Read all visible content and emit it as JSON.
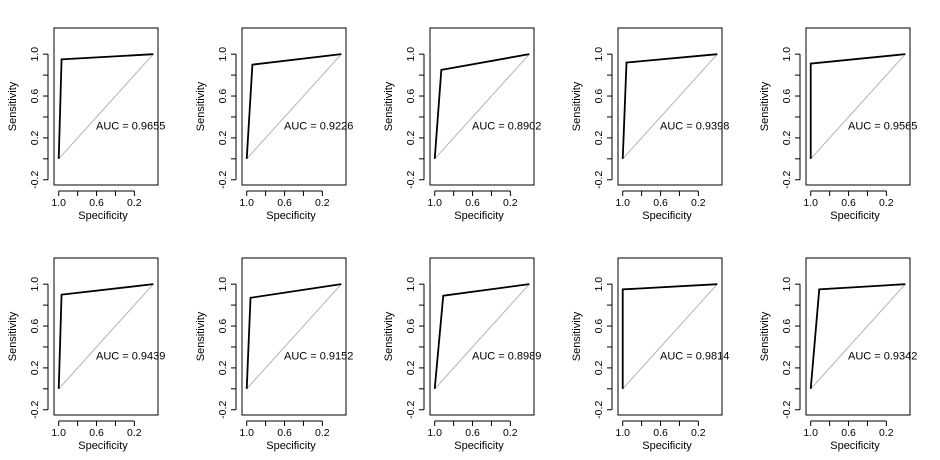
{
  "chart_data": [
    {
      "type": "line",
      "title": "",
      "xlabel": "Specificity",
      "ylabel": "Sensitivity",
      "xlim": [
        1.05,
        -0.05
      ],
      "ylim": [
        -0.25,
        1.25
      ],
      "xticks": [
        "1.0",
        "0.6",
        "0.2"
      ],
      "yticks": [
        "-0.2",
        "0.2",
        "0.6",
        "1.0"
      ],
      "auc_label": "AUC = 0.9655",
      "series": [
        {
          "name": "ROC",
          "x": [
            1.0,
            0.97,
            0.0
          ],
          "y": [
            0.0,
            0.95,
            1.0
          ]
        },
        {
          "name": "reference",
          "x": [
            1.0,
            0.0
          ],
          "y": [
            0.0,
            1.0
          ]
        }
      ]
    },
    {
      "type": "line",
      "title": "",
      "xlabel": "Specificity",
      "ylabel": "Sensitivity",
      "xlim": [
        1.05,
        -0.05
      ],
      "ylim": [
        -0.25,
        1.25
      ],
      "xticks": [
        "1.0",
        "0.6",
        "0.2"
      ],
      "yticks": [
        "-0.2",
        "0.2",
        "0.6",
        "1.0"
      ],
      "auc_label": "AUC = 0.9226",
      "series": [
        {
          "name": "ROC",
          "x": [
            1.0,
            0.94,
            0.0
          ],
          "y": [
            0.0,
            0.9,
            1.0
          ]
        },
        {
          "name": "reference",
          "x": [
            1.0,
            0.0
          ],
          "y": [
            0.0,
            1.0
          ]
        }
      ]
    },
    {
      "type": "line",
      "title": "",
      "xlabel": "Specificity",
      "ylabel": "Sensitivity",
      "xlim": [
        1.05,
        -0.05
      ],
      "ylim": [
        -0.25,
        1.25
      ],
      "xticks": [
        "1.0",
        "0.6",
        "0.2"
      ],
      "yticks": [
        "-0.2",
        "0.2",
        "0.6",
        "1.0"
      ],
      "auc_label": "AUC = 0.8902",
      "series": [
        {
          "name": "ROC",
          "x": [
            1.0,
            0.93,
            0.0
          ],
          "y": [
            0.0,
            0.85,
            1.0
          ]
        },
        {
          "name": "reference",
          "x": [
            1.0,
            0.0
          ],
          "y": [
            0.0,
            1.0
          ]
        }
      ]
    },
    {
      "type": "line",
      "title": "",
      "xlabel": "Specificity",
      "ylabel": "Sensitivity",
      "xlim": [
        1.05,
        -0.05
      ],
      "ylim": [
        -0.25,
        1.25
      ],
      "xticks": [
        "1.0",
        "0.6",
        "0.2"
      ],
      "yticks": [
        "-0.2",
        "0.2",
        "0.6",
        "1.0"
      ],
      "auc_label": "AUC = 0.9398",
      "series": [
        {
          "name": "ROC",
          "x": [
            1.0,
            0.96,
            0.0
          ],
          "y": [
            0.0,
            0.92,
            1.0
          ]
        },
        {
          "name": "reference",
          "x": [
            1.0,
            0.0
          ],
          "y": [
            0.0,
            1.0
          ]
        }
      ]
    },
    {
      "type": "line",
      "title": "",
      "xlabel": "Specificity",
      "ylabel": "Sensitivity",
      "xlim": [
        1.05,
        -0.05
      ],
      "ylim": [
        -0.25,
        1.25
      ],
      "xticks": [
        "1.0",
        "0.6",
        "0.2"
      ],
      "yticks": [
        "-0.2",
        "0.2",
        "0.6",
        "1.0"
      ],
      "auc_label": "AUC = 0.9565",
      "series": [
        {
          "name": "ROC",
          "x": [
            1.0,
            1.0,
            0.0
          ],
          "y": [
            0.0,
            0.91,
            1.0
          ]
        },
        {
          "name": "reference",
          "x": [
            1.0,
            0.0
          ],
          "y": [
            0.0,
            1.0
          ]
        }
      ]
    },
    {
      "type": "line",
      "title": "",
      "xlabel": "Specificity",
      "ylabel": "Sensitivity",
      "xlim": [
        1.05,
        -0.05
      ],
      "ylim": [
        -0.25,
        1.25
      ],
      "xticks": [
        "1.0",
        "0.6",
        "0.2"
      ],
      "yticks": [
        "-0.2",
        "0.2",
        "0.6",
        "1.0"
      ],
      "auc_label": "AUC = 0.9439",
      "series": [
        {
          "name": "ROC",
          "x": [
            1.0,
            0.97,
            0.0
          ],
          "y": [
            0.0,
            0.9,
            1.0
          ]
        },
        {
          "name": "reference",
          "x": [
            1.0,
            0.0
          ],
          "y": [
            0.0,
            1.0
          ]
        }
      ]
    },
    {
      "type": "line",
      "title": "",
      "xlabel": "Specificity",
      "ylabel": "Sensitivity",
      "xlim": [
        1.05,
        -0.05
      ],
      "ylim": [
        -0.25,
        1.25
      ],
      "xticks": [
        "1.0",
        "0.6",
        "0.2"
      ],
      "yticks": [
        "-0.2",
        "0.2",
        "0.6",
        "1.0"
      ],
      "auc_label": "AUC = 0.9152",
      "series": [
        {
          "name": "ROC",
          "x": [
            1.0,
            0.96,
            0.0
          ],
          "y": [
            0.0,
            0.87,
            1.0
          ]
        },
        {
          "name": "reference",
          "x": [
            1.0,
            0.0
          ],
          "y": [
            0.0,
            1.0
          ]
        }
      ]
    },
    {
      "type": "line",
      "title": "",
      "xlabel": "Specificity",
      "ylabel": "Sensitivity",
      "xlim": [
        1.05,
        -0.05
      ],
      "ylim": [
        -0.25,
        1.25
      ],
      "xticks": [
        "1.0",
        "0.6",
        "0.2"
      ],
      "yticks": [
        "-0.2",
        "0.2",
        "0.6",
        "1.0"
      ],
      "auc_label": "AUC = 0.8989",
      "series": [
        {
          "name": "ROC",
          "x": [
            1.0,
            0.91,
            0.0
          ],
          "y": [
            0.0,
            0.89,
            1.0
          ]
        },
        {
          "name": "reference",
          "x": [
            1.0,
            0.0
          ],
          "y": [
            0.0,
            1.0
          ]
        }
      ]
    },
    {
      "type": "line",
      "title": "",
      "xlabel": "Specificity",
      "ylabel": "Sensitivity",
      "xlim": [
        1.05,
        -0.05
      ],
      "ylim": [
        -0.25,
        1.25
      ],
      "xticks": [
        "1.0",
        "0.6",
        "0.2"
      ],
      "yticks": [
        "-0.2",
        "0.2",
        "0.6",
        "1.0"
      ],
      "auc_label": "AUC = 0.9814",
      "series": [
        {
          "name": "ROC",
          "x": [
            1.0,
            1.0,
            0.0
          ],
          "y": [
            0.0,
            0.95,
            1.0
          ]
        },
        {
          "name": "reference",
          "x": [
            1.0,
            0.0
          ],
          "y": [
            0.0,
            1.0
          ]
        }
      ]
    },
    {
      "type": "line",
      "title": "",
      "xlabel": "Specificity",
      "ylabel": "Sensitivity",
      "xlim": [
        1.05,
        -0.05
      ],
      "ylim": [
        -0.25,
        1.25
      ],
      "xticks": [
        "1.0",
        "0.6",
        "0.2"
      ],
      "yticks": [
        "-0.2",
        "0.2",
        "0.6",
        "1.0"
      ],
      "auc_label": "AUC = 0.9342",
      "series": [
        {
          "name": "ROC",
          "x": [
            1.0,
            0.91,
            0.0
          ],
          "y": [
            0.0,
            0.95,
            1.0
          ]
        },
        {
          "name": "reference",
          "x": [
            1.0,
            0.0
          ],
          "y": [
            0.0,
            1.0
          ]
        }
      ]
    }
  ]
}
